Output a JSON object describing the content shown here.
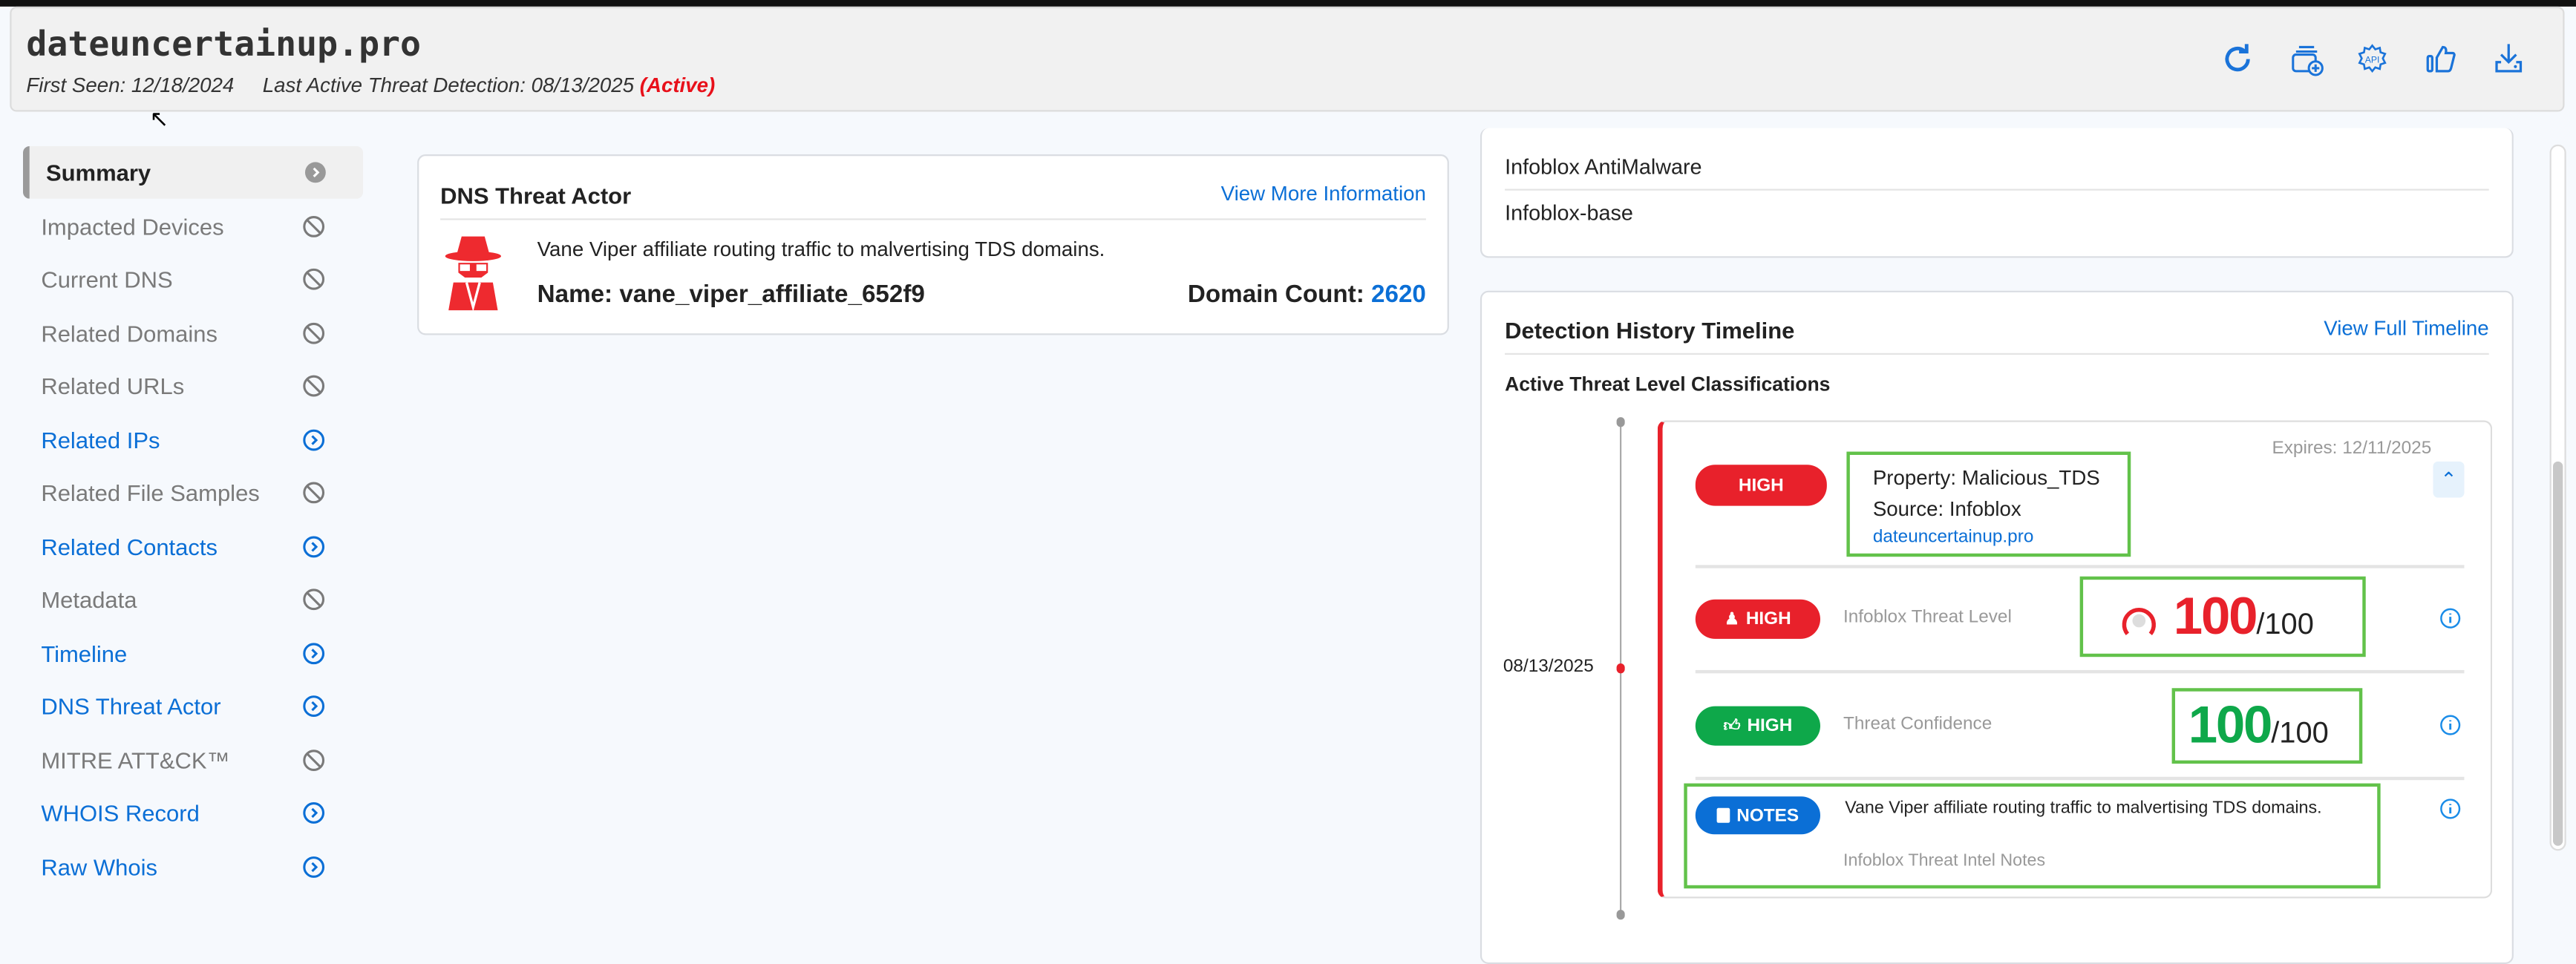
{
  "header": {
    "title": "dateuncertainup.pro",
    "first_seen_label": "First Seen: 12/18/2024",
    "last_detection_label": "Last Active Threat Detection: 08/13/2025",
    "status": "(Active)",
    "status_color": "#e8101a",
    "actions": [
      {
        "icon": "refresh-icon"
      },
      {
        "icon": "add-to-collection-icon"
      },
      {
        "icon": "api-gear-icon"
      },
      {
        "icon": "thumbs-up-icon"
      },
      {
        "icon": "download-icon"
      }
    ]
  },
  "sidebar": {
    "items": [
      {
        "label": "Summary",
        "state": "selected"
      },
      {
        "label": "Impacted Devices",
        "state": "disabled"
      },
      {
        "label": "Current DNS",
        "state": "disabled"
      },
      {
        "label": "Related Domains",
        "state": "disabled"
      },
      {
        "label": "Related URLs",
        "state": "disabled"
      },
      {
        "label": "Related IPs",
        "state": "link"
      },
      {
        "label": "Related File Samples",
        "state": "disabled"
      },
      {
        "label": "Related Contacts",
        "state": "link"
      },
      {
        "label": "Metadata",
        "state": "disabled"
      },
      {
        "label": "Timeline",
        "state": "link"
      },
      {
        "label": "DNS Threat Actor",
        "state": "link"
      },
      {
        "label": "MITRE ATT&CK™",
        "state": "disabled"
      },
      {
        "label": "WHOIS Record",
        "state": "link"
      },
      {
        "label": "Raw Whois",
        "state": "link"
      }
    ]
  },
  "threat_actor": {
    "title": "DNS Threat Actor",
    "link": "View More Information",
    "description": "Vane Viper affiliate routing traffic to malvertising TDS domains.",
    "name_label": "Name: vane_viper_affiliate_652f9",
    "domain_count_label": "Domain Count:",
    "domain_count": "2620",
    "icon": "spy-icon",
    "icon_color": "#ee2a2f"
  },
  "sources": {
    "items": [
      "Infoblox AntiMalware",
      "Infoblox-base"
    ]
  },
  "detection": {
    "title": "Detection History Timeline",
    "link": "View Full Timeline",
    "subtitle": "Active Threat Level Classifications",
    "date": "08/13/2025",
    "expires": "Expires: 12/11/2025",
    "classification": {
      "badge": "HIGH",
      "property": "Property: Malicious_TDS",
      "source": "Source: Infoblox",
      "domain": "dateuncertainup.pro"
    },
    "threat_level": {
      "badge": "HIGH",
      "label": "Infoblox Threat Level",
      "score": "100",
      "max": "/100",
      "color": "#e8212b"
    },
    "confidence": {
      "badge": "HIGH",
      "label": "Threat Confidence",
      "score": "100",
      "max": "/100",
      "color": "#0ea84a"
    },
    "notes": {
      "badge": "NOTES",
      "text": "Vane Viper affiliate routing traffic to malvertising TDS domains.",
      "label": "Infoblox Threat Intel Notes",
      "color": "#0b6fd6"
    }
  }
}
